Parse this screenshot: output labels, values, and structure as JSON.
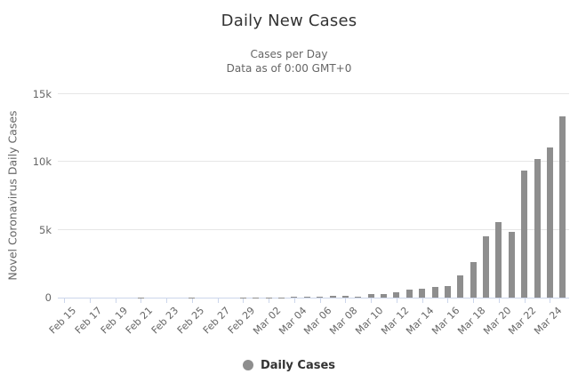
{
  "header": {
    "title": "Daily New Cases",
    "subtitle_line1": "Cases per Day",
    "subtitle_line2": "Data as of 0:00 GMT+0"
  },
  "chart_data": {
    "type": "bar",
    "title": "Daily New Cases",
    "subtitle": [
      "Cases per Day",
      "Data as of 0:00 GMT+0"
    ],
    "xlabel": "",
    "ylabel": "Novel Coronavirus Daily Cases",
    "ylim": [
      0,
      15000
    ],
    "grid": true,
    "bar_color": "#8e8e8e",
    "yticks": [
      {
        "value": 0,
        "label": "0"
      },
      {
        "value": 5000,
        "label": "5k"
      },
      {
        "value": 10000,
        "label": "10k"
      },
      {
        "value": 15000,
        "label": "15k"
      }
    ],
    "x_label_step": 2,
    "categories": [
      "Feb 15",
      "Feb 16",
      "Feb 17",
      "Feb 18",
      "Feb 19",
      "Feb 20",
      "Feb 21",
      "Feb 22",
      "Feb 23",
      "Feb 24",
      "Feb 25",
      "Feb 26",
      "Feb 27",
      "Feb 28",
      "Feb 29",
      "Mar 01",
      "Mar 02",
      "Mar 03",
      "Mar 04",
      "Mar 05",
      "Mar 06",
      "Mar 07",
      "Mar 08",
      "Mar 09",
      "Mar 10",
      "Mar 11",
      "Mar 12",
      "Mar 13",
      "Mar 14",
      "Mar 15",
      "Mar 16",
      "Mar 17",
      "Mar 18",
      "Mar 19",
      "Mar 20",
      "Mar 21",
      "Mar 22",
      "Mar 23",
      "Mar 24",
      "Mar 25"
    ],
    "values": [
      0,
      0,
      1,
      0,
      0,
      1,
      19,
      0,
      0,
      0,
      6,
      2,
      1,
      1,
      6,
      20,
      14,
      22,
      34,
      63,
      98,
      116,
      105,
      95,
      291,
      278,
      392,
      610,
      648,
      773,
      823,
      1650,
      2599,
      4530,
      5594,
      4825,
      9400,
      10189,
      11075,
      13355
    ],
    "legend": {
      "position": "bottom",
      "items": [
        {
          "label": "Daily Cases",
          "color": "#8e8e8e"
        }
      ]
    }
  },
  "colors": {
    "title": "#333333",
    "subtitle": "#666666",
    "axis_text": "#666666",
    "gridline": "#e6e6e6",
    "axis_line": "#ccd6eb",
    "bar": "#8e8e8e",
    "background": "#ffffff"
  }
}
